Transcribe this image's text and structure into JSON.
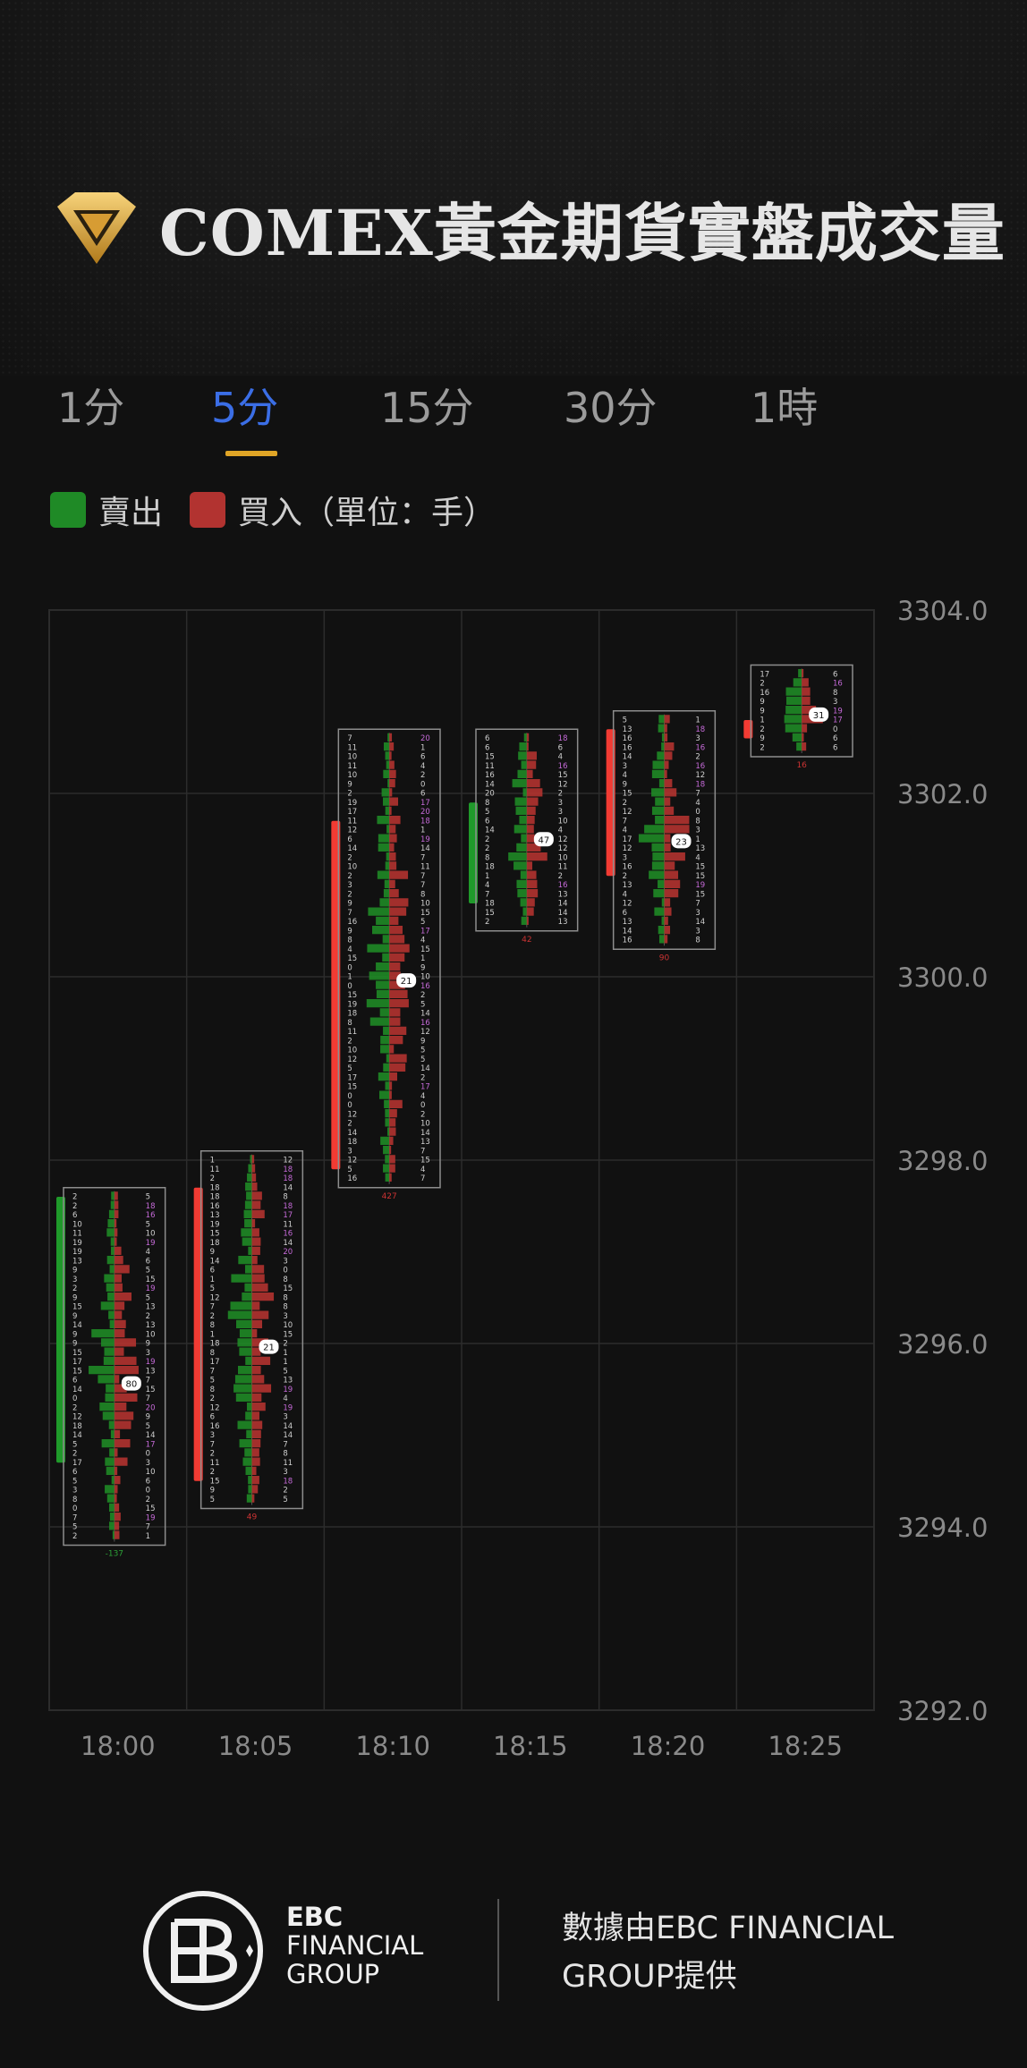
{
  "header": {
    "title": "COMEX黃金期貨實盤成交量",
    "logo_icon": "gold-diamond-icon"
  },
  "tabs": [
    {
      "label": "1分",
      "active": false
    },
    {
      "label": "5分",
      "active": true
    },
    {
      "label": "15分",
      "active": false
    },
    {
      "label": "30分",
      "active": false
    },
    {
      "label": "1時",
      "active": false
    }
  ],
  "colors": {
    "sell": "#1f8a26",
    "buy": "#b23330",
    "candle_up": "#f23b33",
    "candle_down": "#1f9a2a",
    "accent_tab": "#3b6ee6",
    "underline": "#e0a526",
    "grid": "#2c2c2c"
  },
  "legend": {
    "sell_label": "賣出",
    "buy_label": "買入（單位：手）"
  },
  "chart_data": {
    "type": "footprint",
    "y_ticks": [
      "3304.0",
      "3302.0",
      "3300.0",
      "3298.0",
      "3296.0",
      "3294.0",
      "3292.0"
    ],
    "ylim": [
      3292.0,
      3304.0
    ],
    "x_ticks": [
      "18:00",
      "18:05",
      "18:10",
      "18:15",
      "18:20",
      "18:25"
    ],
    "candles": [
      {
        "time": "18:00",
        "open": 3297.6,
        "close": 3294.7,
        "direction": "down",
        "box_low": 3293.8,
        "box_high": 3297.7,
        "total": "-137"
      },
      {
        "time": "18:05",
        "open": 3294.5,
        "close": 3297.7,
        "direction": "up",
        "box_low": 3294.2,
        "box_high": 3298.1,
        "total": "49"
      },
      {
        "time": "18:10",
        "open": 3297.9,
        "close": 3301.7,
        "direction": "up",
        "box_low": 3297.7,
        "box_high": 3302.7,
        "total": "427"
      },
      {
        "time": "18:15",
        "open": 3301.9,
        "close": 3300.8,
        "direction": "down",
        "box_low": 3300.5,
        "box_high": 3302.7,
        "total": "42"
      },
      {
        "time": "18:20",
        "open": 3301.1,
        "close": 3302.7,
        "direction": "up",
        "box_low": 3300.3,
        "box_high": 3302.9,
        "total": "90"
      },
      {
        "time": "18:25",
        "open": 3302.6,
        "close": 3302.8,
        "direction": "up",
        "box_low": 3302.4,
        "box_high": 3303.4,
        "total": "16"
      }
    ],
    "poc_labels": [
      "80",
      "21",
      "21",
      "47",
      "23",
      "31"
    ]
  },
  "footer": {
    "brand_line1": "EBC",
    "brand_line2": "FINANCIAL",
    "brand_line3": "GROUP",
    "note_line1": "數據由EBC FINANCIAL",
    "note_line2": "GROUP提供"
  }
}
